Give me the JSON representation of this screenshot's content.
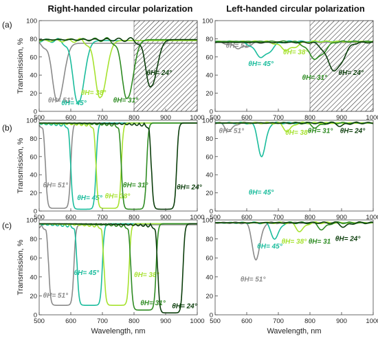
{
  "columns": [
    {
      "title": "Right-handed circular polarization"
    },
    {
      "title": "Left-handed circular polarization"
    }
  ],
  "colors": {
    "a51": "#8a8a8a",
    "a45": "#1abc9c",
    "a38": "#a6e22e",
    "a31": "#2e8b22",
    "a24": "#0b3d0b"
  },
  "chart_data": [
    {
      "type": "line",
      "panel": "(a) RCP",
      "xlabel": "",
      "ylabel": "Transmission, %",
      "xlim": [
        500,
        1000
      ],
      "ylim": [
        0,
        100
      ],
      "xticks": [
        "500",
        "600",
        "700",
        "800",
        "900",
        "1000"
      ],
      "yticks": [
        "0",
        "20",
        "40",
        "60",
        "80",
        "100"
      ],
      "shaded_region": [
        800,
        1000
      ],
      "series": [
        {
          "name": "θH= 51°",
          "color": "#8a8a8a",
          "min_at": 560,
          "min_val": 12,
          "base": 75
        },
        {
          "name": "θH= 45°",
          "color": "#1abc9c",
          "min_at": 625,
          "min_val": 10,
          "base": 78
        },
        {
          "name": "θH= 38°",
          "color": "#a6e22e",
          "min_at": 695,
          "min_val": 16,
          "base": 78
        },
        {
          "name": "θH= 31°",
          "color": "#2e8b22",
          "min_at": 780,
          "min_val": 15,
          "base": 79
        },
        {
          "name": "θH= 24°",
          "color": "#0b3d0b",
          "min_at": 855,
          "min_val": 28,
          "base": 79
        }
      ]
    },
    {
      "type": "line",
      "panel": "(a) LCP",
      "xlim": [
        500,
        1000
      ],
      "ylim": [
        0,
        100
      ],
      "xticks": [
        "500",
        "600",
        "700",
        "800",
        "900",
        "1000"
      ],
      "yticks": [
        "0",
        "20",
        "40",
        "60",
        "80",
        "100"
      ],
      "shaded_region": [
        800,
        1000
      ],
      "series": [
        {
          "name": "θH= 51°",
          "color": "#8a8a8a",
          "min_at": 580,
          "min_val": 70,
          "base": 76
        },
        {
          "name": "θH= 45°",
          "color": "#1abc9c",
          "min_at": 650,
          "min_val": 60,
          "base": 77
        },
        {
          "name": "θH= 38°",
          "color": "#a6e22e",
          "min_at": 730,
          "min_val": 68,
          "base": 77
        },
        {
          "name": "θH= 31°",
          "color": "#2e8b22",
          "min_at": 820,
          "min_val": 58,
          "base": 77
        },
        {
          "name": "θH= 24°",
          "color": "#0b3d0b",
          "min_at": 880,
          "min_val": 45,
          "base": 76
        }
      ]
    },
    {
      "type": "line",
      "panel": "(b) RCP",
      "ylabel": "Transmission, %",
      "xlim": [
        500,
        1000
      ],
      "ylim": [
        0,
        100
      ],
      "xticks": [
        "500",
        "600",
        "700",
        "800",
        "900",
        "1000"
      ],
      "yticks": [
        "0",
        "20",
        "40",
        "60",
        "80",
        "100"
      ],
      "series": [
        {
          "name": "θH= 51°",
          "color": "#8a8a8a",
          "min_at": 560,
          "min_val": 3,
          "base": 97
        },
        {
          "name": "θH= 45°",
          "color": "#1abc9c",
          "min_at": 640,
          "min_val": 2,
          "base": 97
        },
        {
          "name": "θH= 38°",
          "color": "#a6e22e",
          "min_at": 720,
          "min_val": 3,
          "base": 97
        },
        {
          "name": "θH= 31°",
          "color": "#2e8b22",
          "min_at": 800,
          "min_val": 2,
          "base": 97
        },
        {
          "name": "θH= 24°",
          "color": "#0b3d0b",
          "min_at": 895,
          "min_val": 2,
          "base": 97
        }
      ]
    },
    {
      "type": "line",
      "panel": "(b) LCP",
      "xlim": [
        500,
        1000
      ],
      "ylim": [
        0,
        100
      ],
      "xticks": [
        "500",
        "600",
        "700",
        "800",
        "900",
        "1000"
      ],
      "yticks": [
        "0",
        "20",
        "40",
        "60",
        "80",
        "100"
      ],
      "series": [
        {
          "name": "θH= 51°",
          "color": "#8a8a8a",
          "min_at": 545,
          "min_val": 88,
          "base": 97
        },
        {
          "name": "θH= 45°",
          "color": "#1abc9c",
          "min_at": 648,
          "min_val": 60,
          "base": 97
        },
        {
          "name": "θH= 38°",
          "color": "#a6e22e",
          "min_at": 730,
          "min_val": 88,
          "base": 97
        },
        {
          "name": "θH= 31°",
          "color": "#2e8b22",
          "min_at": 820,
          "min_val": 92,
          "base": 97
        },
        {
          "name": "θH= 24°",
          "color": "#0b3d0b",
          "min_at": 900,
          "min_val": 94,
          "base": 97
        }
      ]
    },
    {
      "type": "line",
      "panel": "(c) RCP",
      "ylabel": "Transmission, %",
      "xlabel": "Wavelength, nm",
      "xlim": [
        500,
        1000
      ],
      "ylim": [
        0,
        100
      ],
      "xticks": [
        "500",
        "600",
        "700",
        "800",
        "900",
        "1000"
      ],
      "yticks": [
        "0",
        "20",
        "40",
        "60",
        "80",
        "100"
      ],
      "series": [
        {
          "name": "θH= 51°",
          "color": "#8a8a8a",
          "min_at": 570,
          "min_val": 10,
          "base": 95
        },
        {
          "name": "θH= 45°",
          "color": "#1abc9c",
          "min_at": 660,
          "min_val": 10,
          "base": 96
        },
        {
          "name": "θH= 38°",
          "color": "#a6e22e",
          "min_at": 745,
          "min_val": 10,
          "base": 96
        },
        {
          "name": "θH= 31°",
          "color": "#2e8b22",
          "min_at": 830,
          "min_val": 5,
          "base": 96
        },
        {
          "name": "θH= 24°",
          "color": "#0b3d0b",
          "min_at": 915,
          "min_val": 2,
          "base": 96
        }
      ]
    },
    {
      "type": "line",
      "panel": "(c) LCP",
      "xlabel": "Wavelength, nm",
      "xlim": [
        500,
        1000
      ],
      "ylim": [
        0,
        100
      ],
      "xticks": [
        "500",
        "600",
        "700",
        "800",
        "900",
        "1000"
      ],
      "yticks": [
        "0",
        "20",
        "40",
        "60",
        "80",
        "100"
      ],
      "series": [
        {
          "name": "θH= 51°",
          "color": "#8a8a8a",
          "min_at": 630,
          "min_val": 58,
          "base": 97
        },
        {
          "name": "θH= 45°",
          "color": "#1abc9c",
          "min_at": 690,
          "min_val": 80,
          "base": 97
        },
        {
          "name": "θH= 38°",
          "color": "#a6e22e",
          "min_at": 770,
          "min_val": 88,
          "base": 97
        },
        {
          "name": "θH= 31",
          "color": "#2e8b22",
          "min_at": 840,
          "min_val": 90,
          "base": 97
        },
        {
          "name": "θH= 24°",
          "color": "#0b3d0b",
          "min_at": 910,
          "min_val": 93,
          "base": 97
        }
      ]
    }
  ],
  "row_labels": [
    "(a)",
    "(b)",
    "(c)"
  ]
}
